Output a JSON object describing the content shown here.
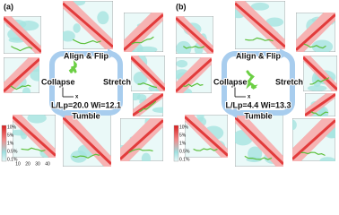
{
  "panels": [
    {
      "label": "(a)",
      "top_text": "Align & Flip",
      "left_text": "Collapse",
      "right_text": "Stretch",
      "bottom_text": "Tumble",
      "params": "L/Lp=20.0  Wi=12.1",
      "axis_z": "z",
      "axis_x": "x"
    },
    {
      "label": "(b)",
      "top_text": "Align & Flip",
      "left_text": "Collapse",
      "right_text": "Stretch",
      "bottom_text": "Tumble",
      "params": "L/Lp=4.4  Wi=13.3",
      "axis_z": "z",
      "axis_x": "x"
    }
  ],
  "colorbar": {
    "labels": [
      "10%",
      "5%",
      "1%",
      "0.5%",
      "0.1%"
    ]
  },
  "x_axis": {
    "ticks": [
      "10",
      "20",
      "30",
      "40"
    ]
  }
}
